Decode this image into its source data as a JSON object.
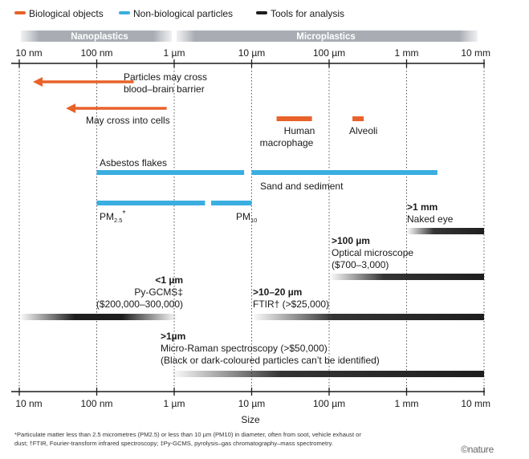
{
  "legend": [
    {
      "label": "Biological objects",
      "color": "#e8622a"
    },
    {
      "label": "Non-biological particles",
      "color": "#3aaee0"
    },
    {
      "label": "Tools for analysis",
      "color": "#1e1e1e"
    }
  ],
  "size_bands": [
    {
      "label": "Nanoplastics",
      "from_um": 0.01,
      "to_um": 1
    },
    {
      "label": "Microplastics",
      "from_um": 1,
      "to_um": 10000
    }
  ],
  "chart_data": {
    "type": "range-bar",
    "title": "",
    "xlabel": "Size",
    "x_scale": "log",
    "xlim_um": [
      0.008,
      10000
    ],
    "ticks": [
      {
        "label": "10 nm",
        "value_um": 0.01
      },
      {
        "label": "100 nm",
        "value_um": 0.1
      },
      {
        "label": "1 µm",
        "value_um": 1
      },
      {
        "label": "10 µm",
        "value_um": 10
      },
      {
        "label": "100 µm",
        "value_um": 100
      },
      {
        "label": "1 mm",
        "value_um": 1000
      },
      {
        "label": "10 mm",
        "value_um": 10000
      }
    ],
    "arrows": [
      {
        "category": "biological",
        "label_lines": [
          "Particles may cross",
          "blood–brain barrier"
        ],
        "from_um": 0.3,
        "to_um": 0.015
      },
      {
        "category": "biological",
        "label_lines": [
          "May cross into cells"
        ],
        "from_um": 0.8,
        "to_um": 0.04
      }
    ],
    "ranges": [
      {
        "category": "biological",
        "label_lines": [
          "Human",
          "macrophage"
        ],
        "from_um": 21,
        "to_um": 60
      },
      {
        "category": "biological",
        "label_lines": [
          "Alveoli"
        ],
        "from_um": 200,
        "to_um": 280
      },
      {
        "category": "non-biological",
        "label_lines": [
          "Asbestos flakes"
        ],
        "from_um": 0.1,
        "to_um": 8
      },
      {
        "category": "non-biological",
        "label_lines": [
          "Sand and sediment"
        ],
        "from_um": 10,
        "to_um": 2500
      },
      {
        "category": "non-biological",
        "label_lines": [
          "PM",
          "2.5",
          "*"
        ],
        "from_um": 0.1,
        "to_um": 2.5
      },
      {
        "category": "non-biological",
        "label_lines": [
          "PM",
          "10"
        ],
        "from_um": 3,
        "to_um": 10
      },
      {
        "category": "tool",
        "label_lines": [
          ">1 mm",
          "Naked eye"
        ],
        "from_um": 1000,
        "to_um": 10000
      },
      {
        "category": "tool",
        "label_lines": [
          ">100 µm",
          "Optical microscope",
          "($700–3,000)"
        ],
        "from_um": 100,
        "to_um": 10000
      },
      {
        "category": "tool",
        "label_lines": [
          "<1 µm",
          "Py-GCMS‡",
          "($200,000–300,000)"
        ],
        "from_um": 0.01,
        "to_um": 1.1
      },
      {
        "category": "tool",
        "label_lines": [
          ">10–20 µm",
          "FTIR† (>$25,000)"
        ],
        "from_um": 10,
        "to_um": 10000
      },
      {
        "category": "tool",
        "label_lines": [
          ">1µm",
          "Micro-Raman spectroscopy (>$50,000)",
          "(Black or dark-coloured particles can’t be identified)"
        ],
        "from_um": 0.9,
        "to_um": 10000
      }
    ]
  },
  "footnote_lines": [
    "*Particulate matter less than 2.5 micrometres (PM2.5) or less than 10 µm (PM10) in diameter, often from soot, vehicle exhaust or",
    "dust; †FTIR, Fourier-transform infrared spectroscopy; ‡Py-GCMS, pyrolysis–gas chromatography–mass spectrometry."
  ],
  "credit": "©nature"
}
